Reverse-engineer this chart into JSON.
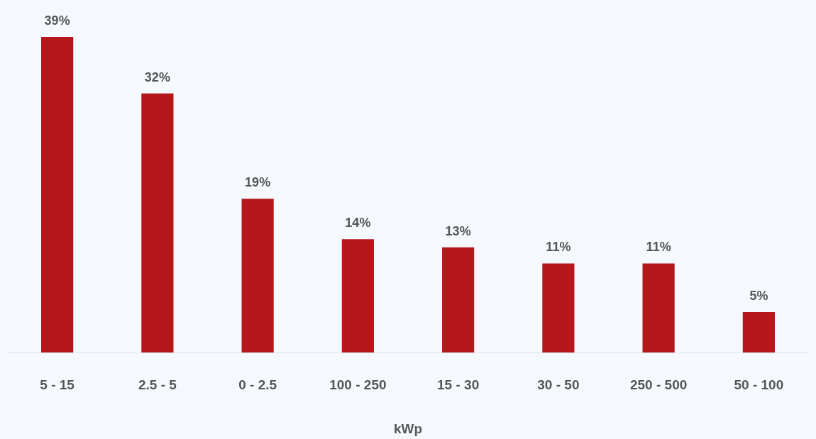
{
  "chart_data": {
    "type": "bar",
    "xlabel": "kWp",
    "categories": [
      "5 - 15",
      "2.5 - 5",
      "0 - 2.5",
      "100 - 250",
      "15 - 30",
      "30 - 50",
      "250 - 500",
      "50 - 100"
    ],
    "values": [
      39,
      32,
      19,
      14,
      13,
      11,
      11,
      5
    ],
    "value_labels": [
      "39%",
      "32%",
      "19%",
      "14%",
      "13%",
      "11%",
      "11%",
      "5%"
    ],
    "color": "#b5171b"
  }
}
